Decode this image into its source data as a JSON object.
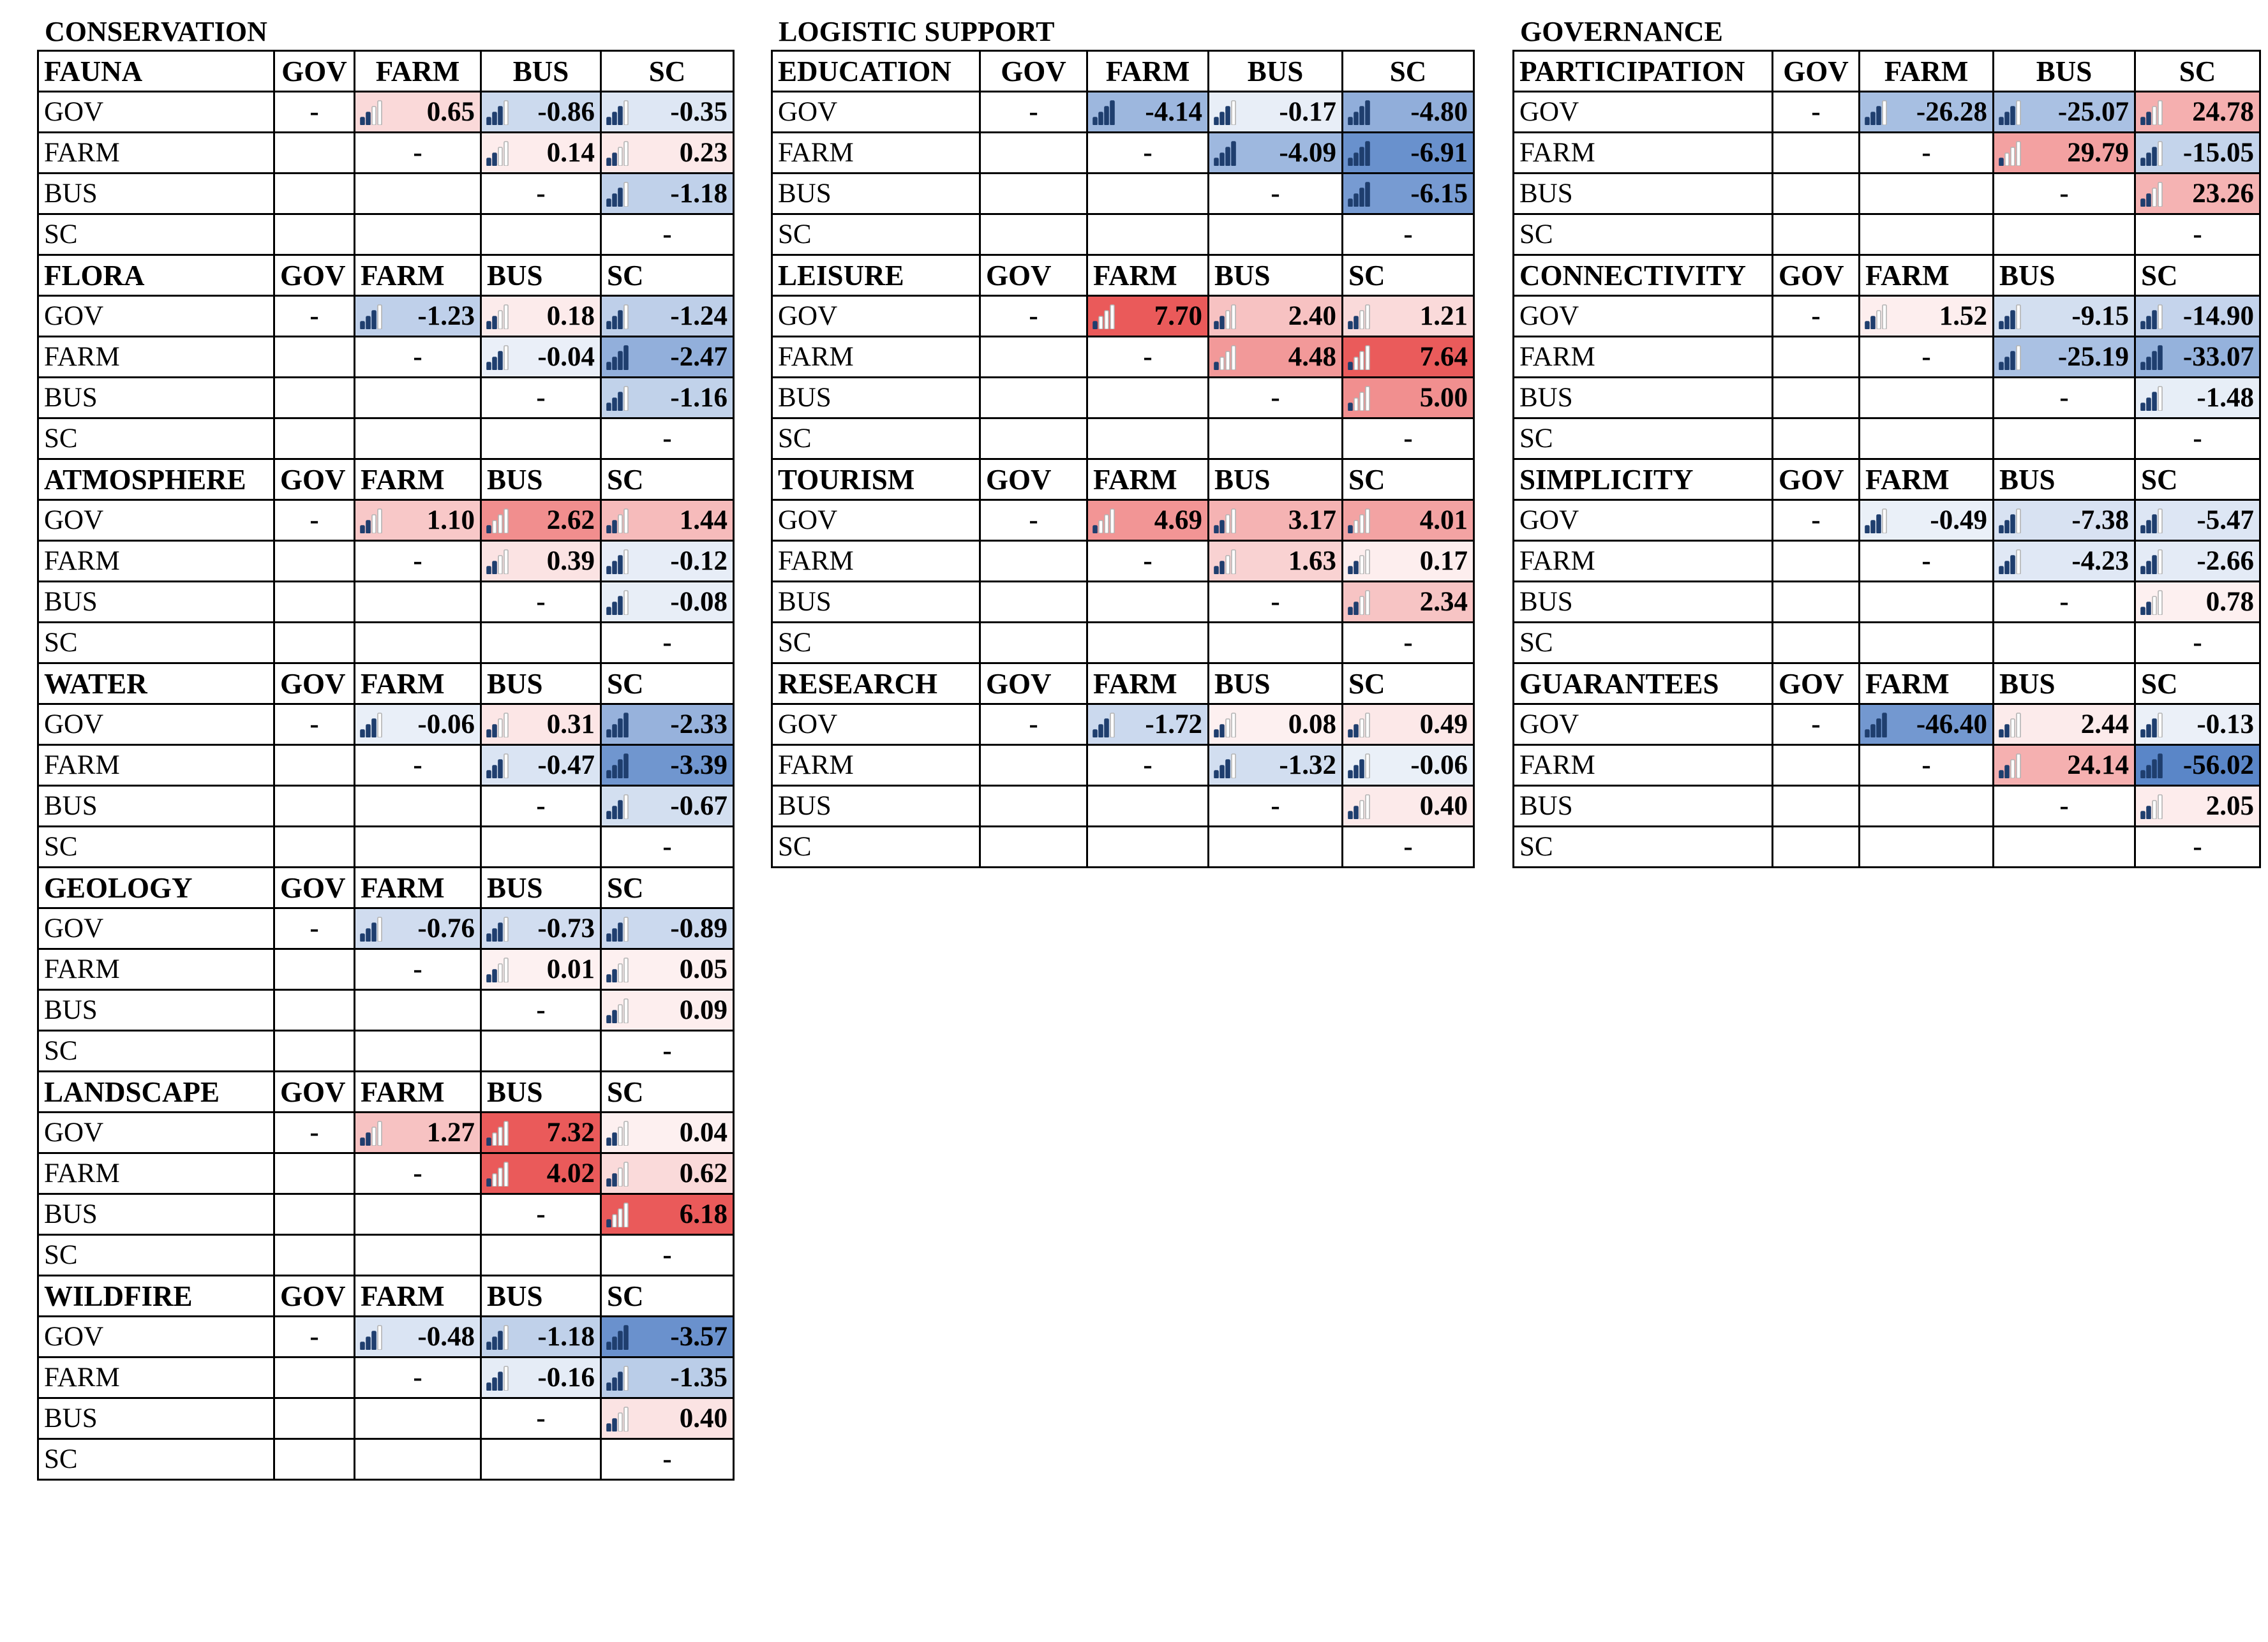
{
  "sections": [
    {
      "title": "CONSERVATION",
      "blocks": [
        {
          "name": "FAUNA",
          "rows": [
            [
              "-",
              "0.65",
              "-0.86",
              "-0.35"
            ],
            [
              "",
              "-",
              "0.14",
              "0.23"
            ],
            [
              "",
              "",
              "-",
              "-1.18"
            ],
            [
              "",
              "",
              "",
              "-"
            ]
          ]
        },
        {
          "name": "FLORA",
          "rows": [
            [
              "-",
              "-1.23",
              "0.18",
              "-1.24"
            ],
            [
              "",
              "-",
              "-0.04",
              "-2.47"
            ],
            [
              "",
              "",
              "-",
              "-1.16"
            ],
            [
              "",
              "",
              "",
              "-"
            ]
          ]
        },
        {
          "name": "ATMOSPHERE",
          "rows": [
            [
              "-",
              "1.10",
              "2.62",
              "1.44"
            ],
            [
              "",
              "-",
              "0.39",
              "-0.12"
            ],
            [
              "",
              "",
              "-",
              "-0.08"
            ],
            [
              "",
              "",
              "",
              "-"
            ]
          ]
        },
        {
          "name": "WATER",
          "rows": [
            [
              "-",
              "-0.06",
              "0.31",
              "-2.33"
            ],
            [
              "",
              "-",
              "-0.47",
              "-3.39"
            ],
            [
              "",
              "",
              "-",
              "-0.67"
            ],
            [
              "",
              "",
              "",
              "-"
            ]
          ]
        },
        {
          "name": "GEOLOGY",
          "rows": [
            [
              "-",
              "-0.76",
              "-0.73",
              "-0.89"
            ],
            [
              "",
              "-",
              "0.01",
              "0.05"
            ],
            [
              "",
              "",
              "-",
              "0.09"
            ],
            [
              "",
              "",
              "",
              "-"
            ]
          ]
        },
        {
          "name": "LANDSCAPE",
          "rows": [
            [
              "-",
              "1.27",
              "7.32",
              "0.04"
            ],
            [
              "",
              "-",
              "4.02",
              "0.62"
            ],
            [
              "",
              "",
              "-",
              "6.18"
            ],
            [
              "",
              "",
              "",
              "-"
            ]
          ]
        },
        {
          "name": "WILDFIRE",
          "rows": [
            [
              "-",
              "-0.48",
              "-1.18",
              "-3.57"
            ],
            [
              "",
              "-",
              "-0.16",
              "-1.35"
            ],
            [
              "",
              "",
              "-",
              "0.40"
            ],
            [
              "",
              "",
              "",
              "-"
            ]
          ]
        }
      ]
    },
    {
      "title": "LOGISTIC SUPPORT",
      "blocks": [
        {
          "name": "EDUCATION",
          "rows": [
            [
              "-",
              "-4.14",
              "-0.17",
              "-4.80"
            ],
            [
              "",
              "-",
              "-4.09",
              "-6.91"
            ],
            [
              "",
              "",
              "-",
              "-6.15"
            ],
            [
              "",
              "",
              "",
              "-"
            ]
          ]
        },
        {
          "name": "LEISURE",
          "rows": [
            [
              "-",
              "7.70",
              "2.40",
              "1.21"
            ],
            [
              "",
              "-",
              "4.48",
              "7.64"
            ],
            [
              "",
              "",
              "-",
              "5.00"
            ],
            [
              "",
              "",
              "",
              "-"
            ]
          ]
        },
        {
          "name": "TOURISM",
          "rows": [
            [
              "-",
              "4.69",
              "3.17",
              "4.01"
            ],
            [
              "",
              "-",
              "1.63",
              "0.17"
            ],
            [
              "",
              "",
              "-",
              "2.34"
            ],
            [
              "",
              "",
              "",
              "-"
            ]
          ]
        },
        {
          "name": "RESEARCH",
          "rows": [
            [
              "-",
              "-1.72",
              "0.08",
              "0.49"
            ],
            [
              "",
              "-",
              "-1.32",
              "-0.06"
            ],
            [
              "",
              "",
              "-",
              "0.40"
            ],
            [
              "",
              "",
              "",
              "-"
            ]
          ]
        }
      ]
    },
    {
      "title": "GOVERNANCE",
      "blocks": [
        {
          "name": "PARTICIPATION",
          "rows": [
            [
              "-",
              "-26.28",
              "-25.07",
              "24.78"
            ],
            [
              "",
              "-",
              "29.79",
              "-15.05"
            ],
            [
              "",
              "",
              "-",
              "23.26"
            ],
            [
              "",
              "",
              "",
              "-"
            ]
          ]
        },
        {
          "name": "CONNECTIVITY",
          "rows": [
            [
              "-",
              "1.52",
              "-9.15",
              "-14.90"
            ],
            [
              "",
              "-",
              "-25.19",
              "-33.07"
            ],
            [
              "",
              "",
              "-",
              "-1.48"
            ],
            [
              "",
              "",
              "",
              "-"
            ]
          ]
        },
        {
          "name": "SIMPLICITY",
          "rows": [
            [
              "-",
              "-0.49",
              "-7.38",
              "-5.47"
            ],
            [
              "",
              "-",
              "-4.23",
              "-2.66"
            ],
            [
              "",
              "",
              "-",
              "0.78"
            ],
            [
              "",
              "",
              "",
              "-"
            ]
          ]
        },
        {
          "name": "GUARANTEES",
          "rows": [
            [
              "-",
              "-46.40",
              "2.44",
              "-0.13"
            ],
            [
              "",
              "-",
              "24.14",
              "-56.02"
            ],
            [
              "",
              "",
              "-",
              "2.05"
            ],
            [
              "",
              "",
              "",
              "-"
            ]
          ]
        }
      ]
    }
  ],
  "col_headers": [
    "GOV",
    "FARM",
    "BUS",
    "SC"
  ],
  "row_labels": [
    "GOV",
    "FARM",
    "BUS",
    "SC"
  ],
  "colors": {
    "negative_max": "#5a86c8",
    "positive_max": "#ea5a5a",
    "icon_dark": "#1f3e6e",
    "icon_light": "#b3b3b3"
  }
}
